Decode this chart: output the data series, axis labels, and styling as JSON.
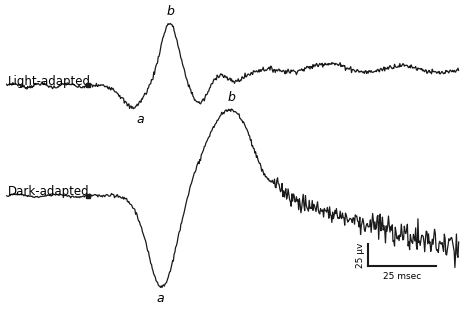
{
  "light_label": "Light-adapted",
  "dark_label": "Dark-adapted",
  "label_a": "a",
  "label_b": "b",
  "scale_uv": "25 μv",
  "scale_msec": "25 msec",
  "bg_color": "#ffffff",
  "line_color": "#1a1a1a",
  "figsize": [
    4.69,
    3.11
  ],
  "dpi": 100
}
